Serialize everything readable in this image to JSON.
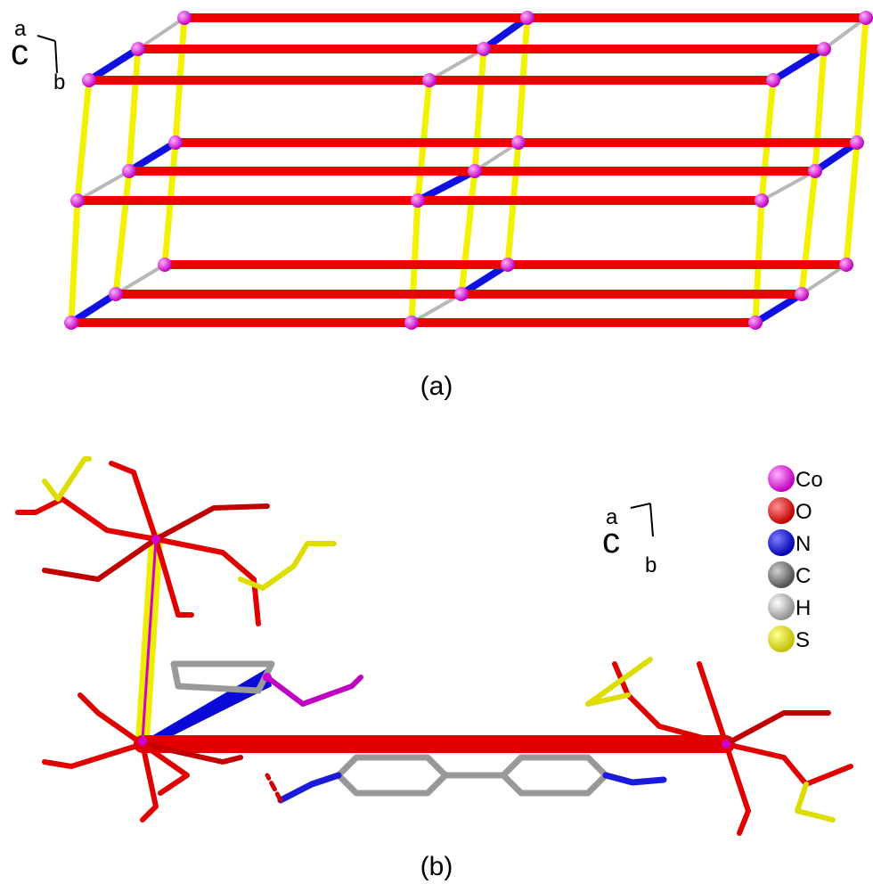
{
  "panel_a": {
    "axes": {
      "a": "a",
      "c": "c",
      "b": "b"
    },
    "label": "(a)"
  },
  "panel_b": {
    "axes": {
      "a": "a",
      "c": "c",
      "b": "b"
    },
    "legend": [
      "Co",
      "O",
      "N",
      "C",
      "H",
      "S"
    ],
    "label": "(b)"
  }
}
